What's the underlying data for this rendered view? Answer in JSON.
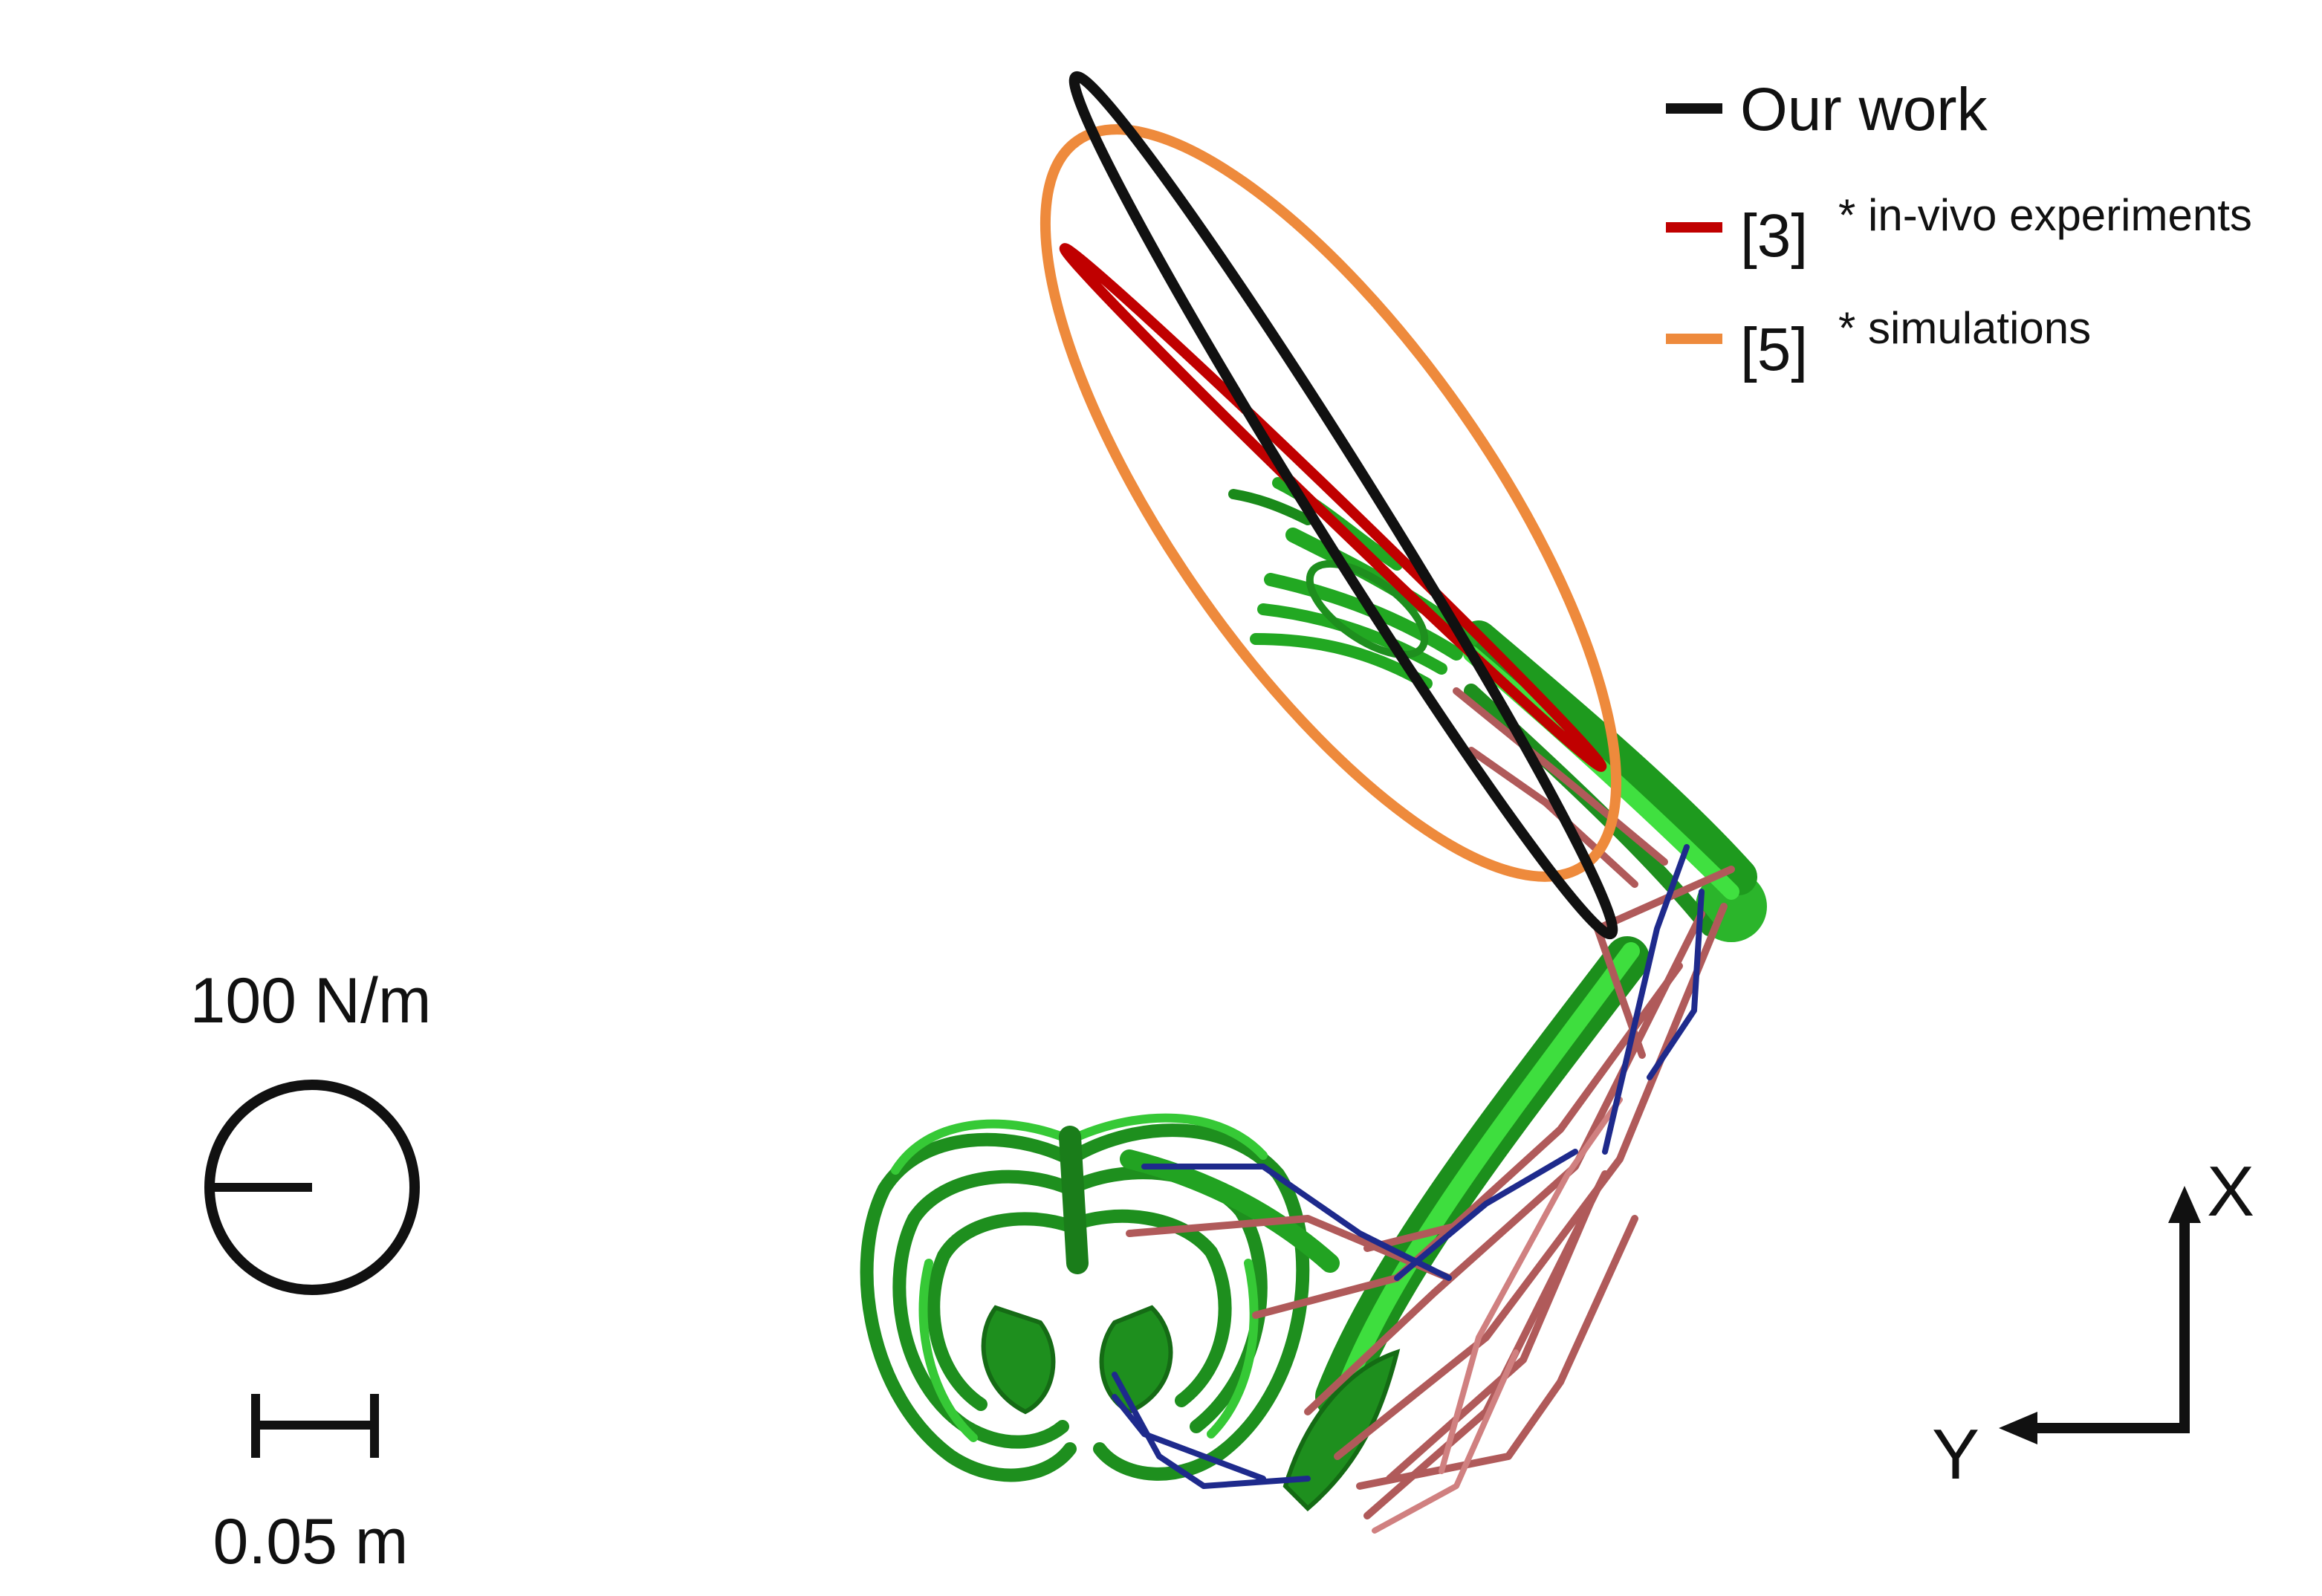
{
  "legend": {
    "items": [
      {
        "ref": "",
        "label": "Our work",
        "color": "#111111"
      },
      {
        "ref": "[3]",
        "label": "* in-vivo experiments",
        "color": "#c00000"
      },
      {
        "ref": "[5]",
        "label": "* simulations",
        "color": "#ee8a3c"
      }
    ]
  },
  "stiffness_scale": {
    "label": "100 N/m"
  },
  "length_scale": {
    "label": "0.05 m"
  },
  "axes": {
    "x_label": "X",
    "y_label": "Y"
  },
  "colors": {
    "our_work": "#111111",
    "in_vivo": "#c00000",
    "simulations": "#ee8a3c",
    "bone": "#22a322",
    "bone_light": "#36d636",
    "bone_dark": "#147a14",
    "muscle": "#b05a5a",
    "muscle_blue": "#1e2a8c"
  }
}
